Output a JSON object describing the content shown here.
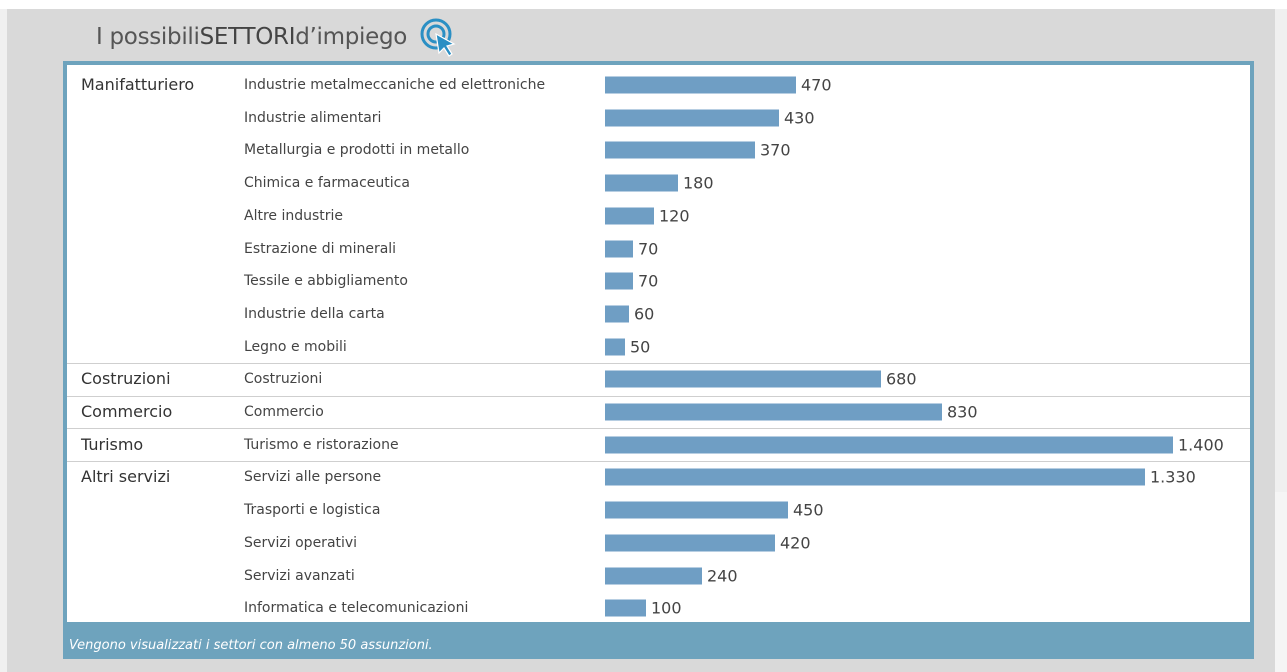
{
  "title_prefix": "I possibili ",
  "title_bold": "SETTORI",
  "title_suffix": " d’impiego",
  "footer_note": "Vengono visualizzati i settori con almeno 50 assunzioni.",
  "colors": {
    "bar": "#6f9ec4",
    "frame": "#6ea3bd"
  },
  "title_icon": "cursor-click-icon",
  "chart_data": {
    "type": "bar",
    "orientation": "horizontal",
    "xlim": [
      0,
      1400
    ],
    "groups": [
      {
        "name": "Manifatturiero",
        "items": [
          {
            "label": "Industrie metalmeccaniche ed elettroniche",
            "value": 470,
            "value_text": "470"
          },
          {
            "label": "Industrie alimentari",
            "value": 430,
            "value_text": "430"
          },
          {
            "label": "Metallurgia e prodotti in metallo",
            "value": 370,
            "value_text": "370"
          },
          {
            "label": "Chimica e farmaceutica",
            "value": 180,
            "value_text": "180"
          },
          {
            "label": "Altre industrie",
            "value": 120,
            "value_text": "120"
          },
          {
            "label": "Estrazione di minerali",
            "value": 70,
            "value_text": "70"
          },
          {
            "label": "Tessile e abbigliamento",
            "value": 70,
            "value_text": "70"
          },
          {
            "label": "Industrie della carta",
            "value": 60,
            "value_text": "60"
          },
          {
            "label": "Legno e mobili",
            "value": 50,
            "value_text": "50"
          }
        ]
      },
      {
        "name": "Costruzioni",
        "items": [
          {
            "label": "Costruzioni",
            "value": 680,
            "value_text": "680"
          }
        ]
      },
      {
        "name": "Commercio",
        "items": [
          {
            "label": "Commercio",
            "value": 830,
            "value_text": "830"
          }
        ]
      },
      {
        "name": "Turismo",
        "items": [
          {
            "label": "Turismo e ristorazione",
            "value": 1400,
            "value_text": "1.400"
          }
        ]
      },
      {
        "name": "Altri servizi",
        "items": [
          {
            "label": "Servizi alle persone",
            "value": 1330,
            "value_text": "1.330"
          },
          {
            "label": "Trasporti e logistica",
            "value": 450,
            "value_text": "450"
          },
          {
            "label": "Servizi operativi",
            "value": 420,
            "value_text": "420"
          },
          {
            "label": "Servizi avanzati",
            "value": 240,
            "value_text": "240"
          },
          {
            "label": "Informatica e telecomunicazioni",
            "value": 100,
            "value_text": "100"
          }
        ]
      }
    ]
  }
}
